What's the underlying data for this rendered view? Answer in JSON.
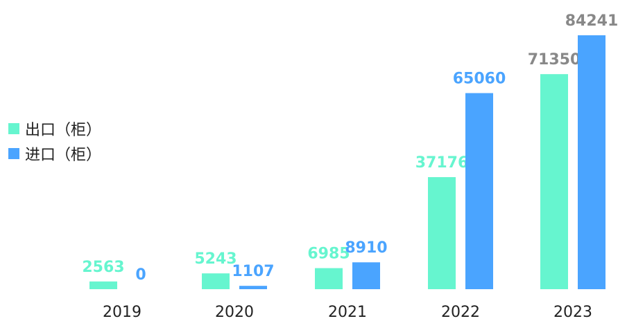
{
  "chart_data": {
    "type": "bar",
    "categories": [
      "2019",
      "2020",
      "2021",
      "2022",
      "2023"
    ],
    "series": [
      {
        "name": "出口（柜）",
        "color": "#66f5cf",
        "values": [
          2563,
          5243,
          6985,
          37176,
          71350
        ]
      },
      {
        "name": "进口（柜）",
        "color": "#4aa4ff",
        "values": [
          0,
          1107,
          8910,
          65060,
          84241
        ]
      }
    ],
    "label_colors": [
      [
        "#66f5cf",
        "#4aa4ff"
      ],
      [
        "#66f5cf",
        "#4aa4ff"
      ],
      [
        "#66f5cf",
        "#4aa4ff"
      ],
      [
        "#66f5cf",
        "#4aa4ff"
      ],
      [
        "#888888",
        "#888888"
      ]
    ],
    "ylim": [
      0,
      84241
    ],
    "grid": false,
    "legend_position": "left"
  }
}
